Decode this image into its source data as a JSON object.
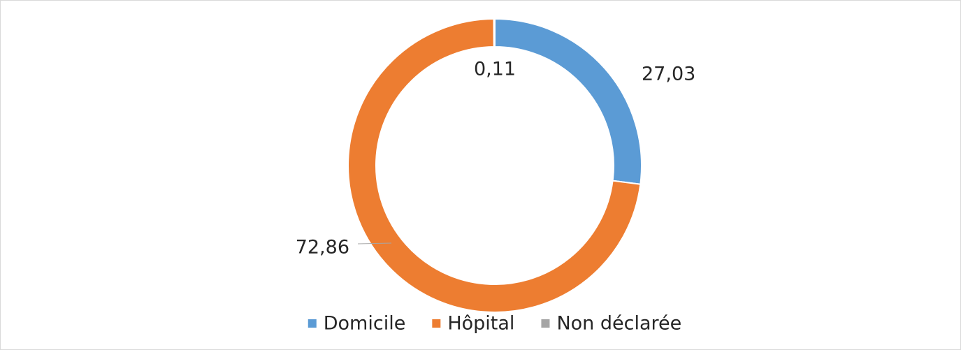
{
  "chart_data": {
    "type": "donut",
    "categories": [
      "Domicile",
      "Hôpital",
      "Non déclarée"
    ],
    "values": [
      27.03,
      72.86,
      0.11
    ],
    "value_labels": [
      "27,03",
      "72,86",
      "0,11"
    ],
    "colors": [
      "#5b9bd5",
      "#ed7d31",
      "#a5a5a5"
    ],
    "legend": "bottom"
  }
}
